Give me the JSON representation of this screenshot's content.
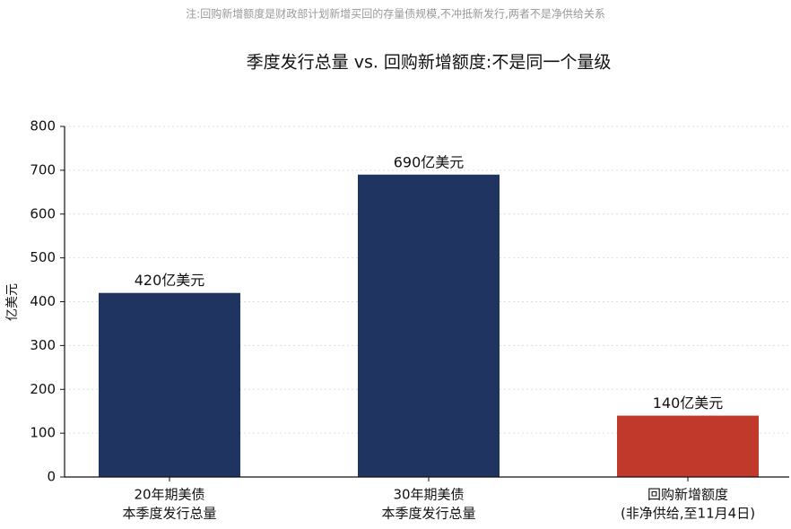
{
  "chart_data": {
    "type": "bar",
    "note": "注:回购新增额度是财政部计划新增买回的存量债规模,不冲抵新发行,两者不是净供给关系",
    "title": "季度发行总量 vs. 回购新增额度:不是同一个量级",
    "y_label": "亿美元",
    "categories": [
      [
        "20年期美债",
        "本季度发行总量"
      ],
      [
        "30年期美债",
        "本季度发行总量"
      ],
      [
        "回购新增额度",
        "(非净供给,至11月4日)"
      ]
    ],
    "values": [
      420,
      690,
      140
    ],
    "value_labels": [
      "420亿美元",
      "690亿美元",
      "140亿美元"
    ],
    "colors": [
      "#1f3461",
      "#1f3461",
      "#c0392b"
    ],
    "ylim": [
      0,
      800
    ],
    "yticks": [
      0,
      100,
      200,
      300,
      400,
      500,
      600,
      700,
      800
    ],
    "grid": true
  }
}
